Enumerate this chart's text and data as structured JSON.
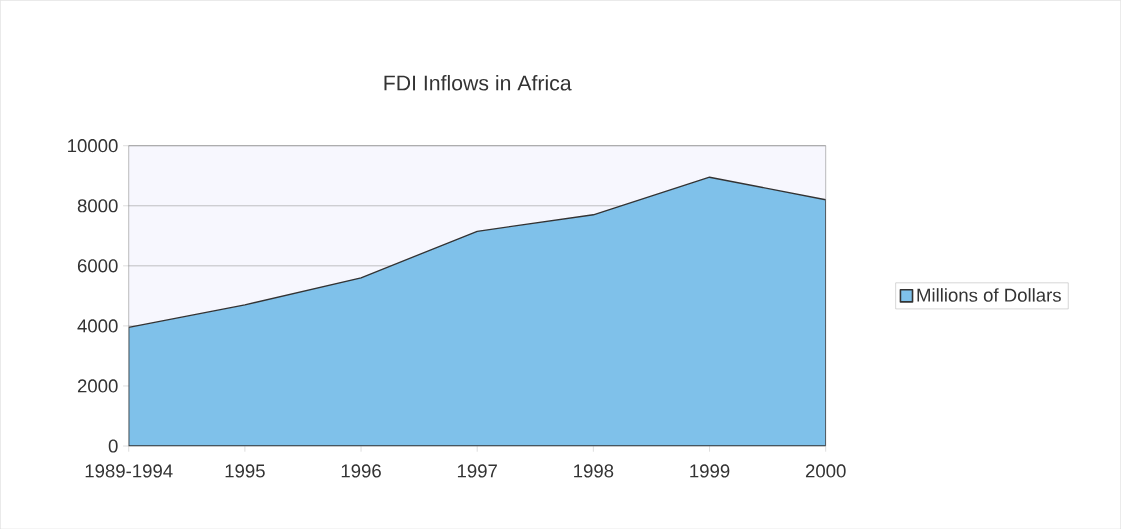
{
  "chart_data": {
    "type": "area",
    "title": "FDI Inflows in Africa",
    "categories": [
      "1989-1994",
      "1995",
      "1996",
      "1997",
      "1998",
      "1999",
      "2000"
    ],
    "series": [
      {
        "name": "Millions of Dollars",
        "color": "#7fc1ea",
        "values": [
          3950,
          4700,
          5600,
          7150,
          7700,
          8950,
          8200
        ]
      }
    ],
    "ylim": [
      0,
      10000
    ],
    "yticks": [
      0,
      2000,
      4000,
      6000,
      8000,
      10000
    ],
    "grid": "y",
    "legend": "right"
  }
}
